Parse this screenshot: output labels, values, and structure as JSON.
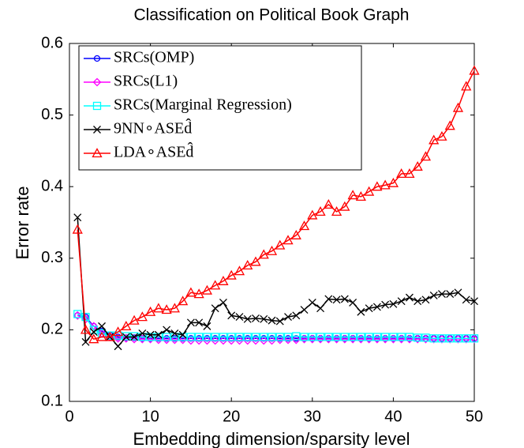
{
  "chart_data": {
    "type": "line",
    "title": "Classification on Political Book Graph",
    "x_label": "Embedding dimension/sparsity level",
    "y_label": "Error rate",
    "x": [
      1,
      2,
      3,
      4,
      5,
      6,
      7,
      8,
      9,
      10,
      11,
      12,
      13,
      14,
      15,
      16,
      17,
      18,
      19,
      20,
      21,
      22,
      23,
      24,
      25,
      26,
      27,
      28,
      29,
      30,
      31,
      32,
      33,
      34,
      35,
      36,
      37,
      38,
      39,
      40,
      41,
      42,
      43,
      44,
      45,
      46,
      47,
      48,
      49,
      50
    ],
    "xlim": [
      0,
      50
    ],
    "xticks": [
      0,
      10,
      20,
      30,
      40,
      50
    ],
    "ylim": [
      0.1,
      0.6
    ],
    "yticks": [
      0.1,
      0.2,
      0.3,
      0.4,
      0.5,
      0.6
    ],
    "grid": false,
    "legend": "upper left",
    "series": [
      {
        "name": "SRCs(OMP)",
        "color": "#0000ff",
        "marker": "circle",
        "values": [
          0.22,
          0.218,
          0.205,
          0.198,
          0.193,
          0.19,
          0.189,
          0.189,
          0.188,
          0.188,
          0.188,
          0.188,
          0.188,
          0.188,
          0.188,
          0.188,
          0.188,
          0.188,
          0.188,
          0.188,
          0.188,
          0.188,
          0.188,
          0.188,
          0.188,
          0.188,
          0.188,
          0.188,
          0.188,
          0.188,
          0.188,
          0.188,
          0.188,
          0.188,
          0.188,
          0.188,
          0.188,
          0.188,
          0.188,
          0.188,
          0.188,
          0.188,
          0.188,
          0.188,
          0.188,
          0.188,
          0.188,
          0.188,
          0.188,
          0.188
        ]
      },
      {
        "name": "SRCs(L1)",
        "color": "#ff00ff",
        "marker": "diamond",
        "values": [
          0.22,
          0.215,
          0.205,
          0.195,
          0.19,
          0.188,
          0.188,
          0.187,
          0.187,
          0.187,
          0.186,
          0.186,
          0.186,
          0.186,
          0.185,
          0.185,
          0.185,
          0.185,
          0.185,
          0.185,
          0.185,
          0.185,
          0.185,
          0.185,
          0.185,
          0.186,
          0.186,
          0.186,
          0.187,
          0.187,
          0.187,
          0.187,
          0.187,
          0.187,
          0.187,
          0.187,
          0.187,
          0.187,
          0.187,
          0.187,
          0.187,
          0.187,
          0.187,
          0.187,
          0.187,
          0.187,
          0.187,
          0.187,
          0.187,
          0.187
        ]
      },
      {
        "name": "SRCs(Marginal Regression)",
        "color": "#00ffff",
        "marker": "square",
        "values": [
          0.222,
          0.218,
          0.2,
          0.195,
          0.192,
          0.192,
          0.191,
          0.191,
          0.19,
          0.19,
          0.19,
          0.19,
          0.19,
          0.19,
          0.19,
          0.19,
          0.19,
          0.19,
          0.19,
          0.19,
          0.19,
          0.19,
          0.19,
          0.19,
          0.19,
          0.19,
          0.19,
          0.191,
          0.19,
          0.19,
          0.19,
          0.19,
          0.19,
          0.19,
          0.19,
          0.19,
          0.19,
          0.19,
          0.19,
          0.19,
          0.19,
          0.19,
          0.189,
          0.189,
          0.188,
          0.188,
          0.188,
          0.188,
          0.188,
          0.188
        ]
      },
      {
        "name": "9NN∘ASEd̂",
        "color": "#000000",
        "marker": "x",
        "values": [
          0.357,
          0.183,
          0.197,
          0.205,
          0.19,
          0.177,
          0.19,
          0.19,
          0.195,
          0.193,
          0.193,
          0.2,
          0.195,
          0.193,
          0.21,
          0.21,
          0.205,
          0.23,
          0.238,
          0.22,
          0.218,
          0.215,
          0.216,
          0.215,
          0.213,
          0.212,
          0.218,
          0.22,
          0.228,
          0.238,
          0.23,
          0.243,
          0.242,
          0.243,
          0.238,
          0.225,
          0.23,
          0.232,
          0.235,
          0.236,
          0.24,
          0.245,
          0.24,
          0.242,
          0.248,
          0.25,
          0.25,
          0.252,
          0.242,
          0.24
        ]
      },
      {
        "name": "LDA∘ASEd̂",
        "color": "#ff0000",
        "marker": "triangle",
        "values": [
          0.34,
          0.2,
          0.187,
          0.19,
          0.19,
          0.197,
          0.205,
          0.213,
          0.218,
          0.225,
          0.23,
          0.228,
          0.23,
          0.24,
          0.252,
          0.25,
          0.255,
          0.262,
          0.268,
          0.276,
          0.282,
          0.29,
          0.295,
          0.305,
          0.31,
          0.318,
          0.325,
          0.332,
          0.345,
          0.36,
          0.365,
          0.375,
          0.365,
          0.372,
          0.388,
          0.386,
          0.393,
          0.4,
          0.402,
          0.405,
          0.418,
          0.418,
          0.428,
          0.442,
          0.465,
          0.47,
          0.485,
          0.51,
          0.54,
          0.562
        ]
      }
    ]
  }
}
